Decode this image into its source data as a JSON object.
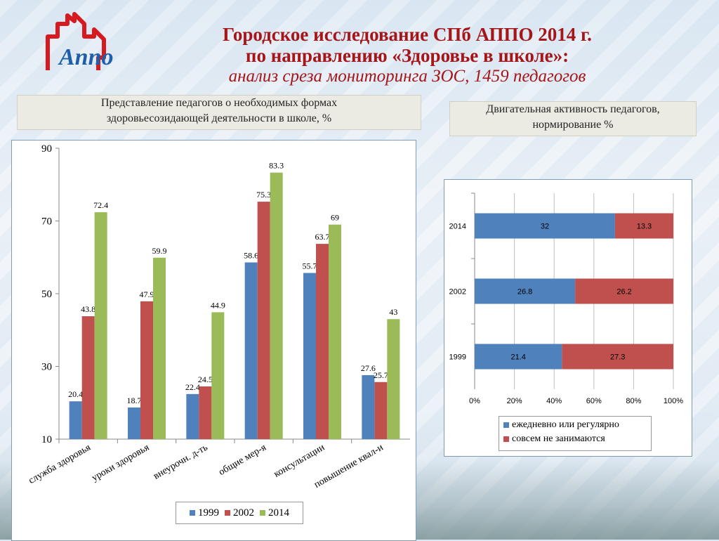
{
  "header": {
    "title_line1": "Городское исследование СПб АППО 2014 г.",
    "title_line2": "по направлению «Здоровье в школе»:",
    "title_line3": "анализ среза мониторинга ЗОС, 1459 педагогов",
    "logo_text": "Аппо"
  },
  "left_caption": {
    "line1": "Представление педагогов о необходимых формах",
    "line2": "здоровьесозидающей деятельности в школе,  %"
  },
  "right_caption": {
    "line1": "Двигательная активность педагогов,",
    "line2": "нормирование %"
  },
  "colors": {
    "blue": "#4f81bd",
    "red": "#c0504d",
    "green": "#9bbb59",
    "title": "#a4161a"
  },
  "chart_data": [
    {
      "type": "bar",
      "categories": [
        "служба здоровья",
        "уроки здоровья",
        "внеурочн. д-ть",
        "общие мер-я",
        "консультации",
        "повышение квал-и"
      ],
      "series": [
        {
          "name": "1999",
          "values": [
            20.4,
            18.7,
            22.4,
            58.6,
            55.7,
            27.6
          ]
        },
        {
          "name": "2002",
          "values": [
            43.8,
            47.9,
            24.5,
            75.3,
            63.7,
            25.7
          ]
        },
        {
          "name": "2014",
          "values": [
            72.4,
            59.9,
            44.9,
            83.3,
            69,
            43
          ]
        }
      ],
      "ylim": [
        10,
        90
      ],
      "yticks": [
        10,
        30,
        50,
        70,
        90
      ],
      "legend": "bottom"
    },
    {
      "type": "bar",
      "orientation": "horizontal",
      "stacked": "percent",
      "categories": [
        "2014",
        "2002",
        "1999"
      ],
      "series": [
        {
          "name": "ежедневно или регулярно",
          "values": [
            32,
            26.8,
            21.4
          ]
        },
        {
          "name": "совсем не занимаются",
          "values": [
            13.3,
            26.2,
            27.3
          ]
        }
      ],
      "xticks": [
        "0%",
        "20%",
        "40%",
        "60%",
        "80%",
        "100%"
      ],
      "legend": "bottom"
    }
  ]
}
